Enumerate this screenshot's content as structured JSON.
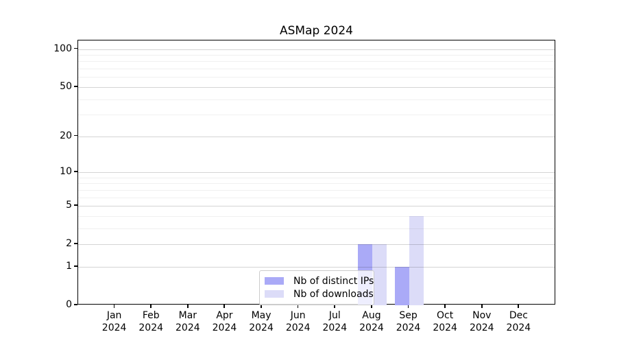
{
  "title": "ASMap 2024",
  "chart_data": {
    "type": "bar",
    "title": "ASMap 2024",
    "x_months": [
      "Jan",
      "Feb",
      "Mar",
      "Apr",
      "May",
      "Jun",
      "Jul",
      "Aug",
      "Sep",
      "Oct",
      "Nov",
      "Dec"
    ],
    "x_year": "2024",
    "series": [
      {
        "name": "Nb of distinct IPs",
        "color": "#aaaaf7",
        "values": [
          0,
          0,
          0,
          0,
          0,
          0,
          0,
          2,
          1,
          0,
          0,
          0
        ]
      },
      {
        "name": "Nb of downloads",
        "color": "#dcdcf8",
        "values": [
          0,
          0,
          0,
          0,
          0,
          0,
          0,
          2,
          4,
          0,
          0,
          0
        ]
      }
    ],
    "y_axis": {
      "scale": "log1p",
      "major_ticks": [
        0,
        1,
        2,
        5,
        10,
        20,
        50,
        100
      ],
      "minor_ticks": [
        3,
        4,
        6,
        7,
        8,
        9,
        30,
        40,
        60,
        70,
        80,
        90
      ],
      "range_top": 117,
      "ylim": [
        0,
        100
      ]
    },
    "grid": "horizontal major + minor",
    "legend_position": "lower center",
    "colors": {
      "background": "#ffffff",
      "axis": "#000000",
      "grid_major": "#d6d6d6",
      "grid_minor": "#efefef",
      "legend_border": "#cccccc"
    }
  }
}
